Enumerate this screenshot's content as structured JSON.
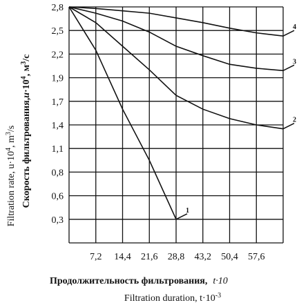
{
  "chart_data": {
    "type": "line",
    "x_ticks": [
      "7,2",
      "14,4",
      "21,6",
      "28,8",
      "43,2",
      "50,4",
      "57,6"
    ],
    "y_ticks": [
      "2,8",
      "2,5",
      "2,2",
      "1,9",
      "1,7",
      "1,4",
      "1,1",
      "0,8",
      "0,6",
      "0,3"
    ],
    "xlabel_ru": "Продолжительность фильтрования,",
    "xlabel_ru_var": "t·10",
    "xlabel_en": "Filtration duration, t·10",
    "xlabel_en_sup": "-3",
    "ylabel_ru": "Скорость фильтрования,",
    "ylabel_ru_var": "u",
    "ylabel_ru_unit": "·10",
    "ylabel_ru_exp": "4",
    "ylabel_ru_m": ", м",
    "ylabel_ru_m_exp": "3",
    "ylabel_ru_s": "/с",
    "ylabel_en": "Filtration rate, u·10",
    "ylabel_en_exp": "4",
    "ylabel_en_unit": ", m",
    "ylabel_en_unit_exp": "3",
    "ylabel_en_s": "/s",
    "grid": true,
    "series": [
      {
        "name": "1",
        "x": [
          0,
          7.2,
          14.4,
          21.6,
          28.8
        ],
        "y": [
          2.8,
          2.25,
          1.6,
          0.95,
          0.3
        ]
      },
      {
        "name": "2",
        "x": [
          0,
          7.2,
          14.4,
          21.6,
          28.8,
          43.2,
          50.4,
          57.6,
          64.8
        ],
        "y": [
          2.8,
          2.6,
          2.3,
          2.0,
          1.75,
          1.6,
          1.48,
          1.4,
          1.35
        ]
      },
      {
        "name": "3",
        "x": [
          0,
          7.2,
          14.4,
          21.6,
          28.8,
          43.2,
          50.4,
          57.6,
          64.8
        ],
        "y": [
          2.8,
          2.72,
          2.62,
          2.48,
          2.3,
          2.18,
          2.07,
          2.02,
          1.99
        ]
      },
      {
        "name": "4",
        "x": [
          0,
          7.2,
          14.4,
          21.6,
          28.8,
          43.2,
          50.4,
          57.6,
          64.8
        ],
        "y": [
          2.8,
          2.78,
          2.75,
          2.72,
          2.66,
          2.6,
          2.53,
          2.47,
          2.43
        ]
      }
    ]
  }
}
